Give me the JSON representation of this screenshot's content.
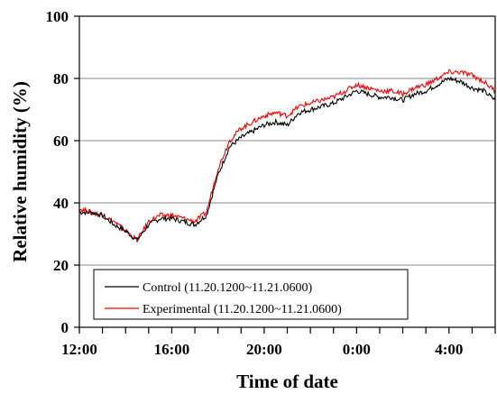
{
  "chart_data": {
    "type": "line",
    "title": "",
    "xlabel": "Time of date",
    "ylabel": "Relative humidity (%)",
    "ylim": [
      0,
      100
    ],
    "y_ticks": [
      0,
      20,
      40,
      60,
      80,
      100
    ],
    "grid": "horizontal",
    "legend_position": "bottom-left",
    "x_tick_labels": [
      "12:00",
      "16:00",
      "20:00",
      "0:00",
      "4:00"
    ],
    "x": [
      "12:00",
      "12:30",
      "13:00",
      "13:30",
      "14:00",
      "14:30",
      "15:00",
      "15:30",
      "16:00",
      "16:30",
      "17:00",
      "17:30",
      "18:00",
      "18:30",
      "19:00",
      "19:30",
      "20:00",
      "20:30",
      "21:00",
      "21:30",
      "22:00",
      "22:30",
      "23:00",
      "23:30",
      "0:00",
      "0:30",
      "1:00",
      "1:30",
      "2:00",
      "2:30",
      "3:00",
      "3:30",
      "4:00",
      "4:30",
      "5:00",
      "5:30",
      "6:00"
    ],
    "series": [
      {
        "name": "Control (11.20.1200~11.21.0600)",
        "color": "#000000",
        "values": [
          37,
          37,
          36,
          33,
          31,
          28,
          33,
          35,
          35,
          34,
          33,
          36,
          49,
          58,
          61,
          63,
          65,
          66,
          65,
          69,
          70,
          71,
          72,
          74,
          76,
          75,
          74,
          74,
          73,
          75,
          76,
          78,
          80,
          79,
          77,
          76,
          73
        ]
      },
      {
        "name": "Experimental (11.20.1200~11.21.0600)",
        "color": "#ff0000",
        "values": [
          38,
          37,
          36,
          34,
          31,
          28,
          34,
          36,
          36,
          35,
          34,
          37,
          51,
          60,
          64,
          66,
          68,
          69,
          68,
          71,
          72,
          73,
          74,
          76,
          78,
          77,
          76,
          76,
          75,
          77,
          78,
          80,
          82,
          82,
          81,
          79,
          76
        ]
      }
    ]
  }
}
